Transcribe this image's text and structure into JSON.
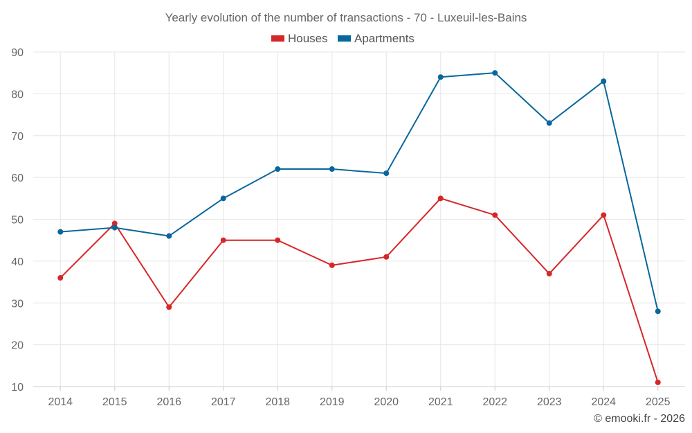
{
  "chart_data": {
    "type": "line",
    "title": "Yearly evolution of the number of transactions - 70 - Luxeuil-les-Bains",
    "categories": [
      "2014",
      "2015",
      "2016",
      "2017",
      "2018",
      "2019",
      "2020",
      "2021",
      "2022",
      "2023",
      "2024",
      "2025"
    ],
    "series": [
      {
        "name": "Houses",
        "color": "#d62728",
        "values": [
          36,
          49,
          29,
          45,
          45,
          39,
          41,
          55,
          51,
          37,
          51,
          11
        ]
      },
      {
        "name": "Apartments",
        "color": "#08679c",
        "values": [
          47,
          48,
          46,
          55,
          62,
          62,
          61,
          84,
          85,
          73,
          83,
          28
        ]
      }
    ],
    "ylim": [
      10,
      90
    ],
    "yticks": [
      10,
      20,
      30,
      40,
      50,
      60,
      70,
      80,
      90
    ],
    "grid": true,
    "legend": "top-center",
    "xlabel": "",
    "ylabel": ""
  },
  "credit": "© emooki.fr - 2026"
}
